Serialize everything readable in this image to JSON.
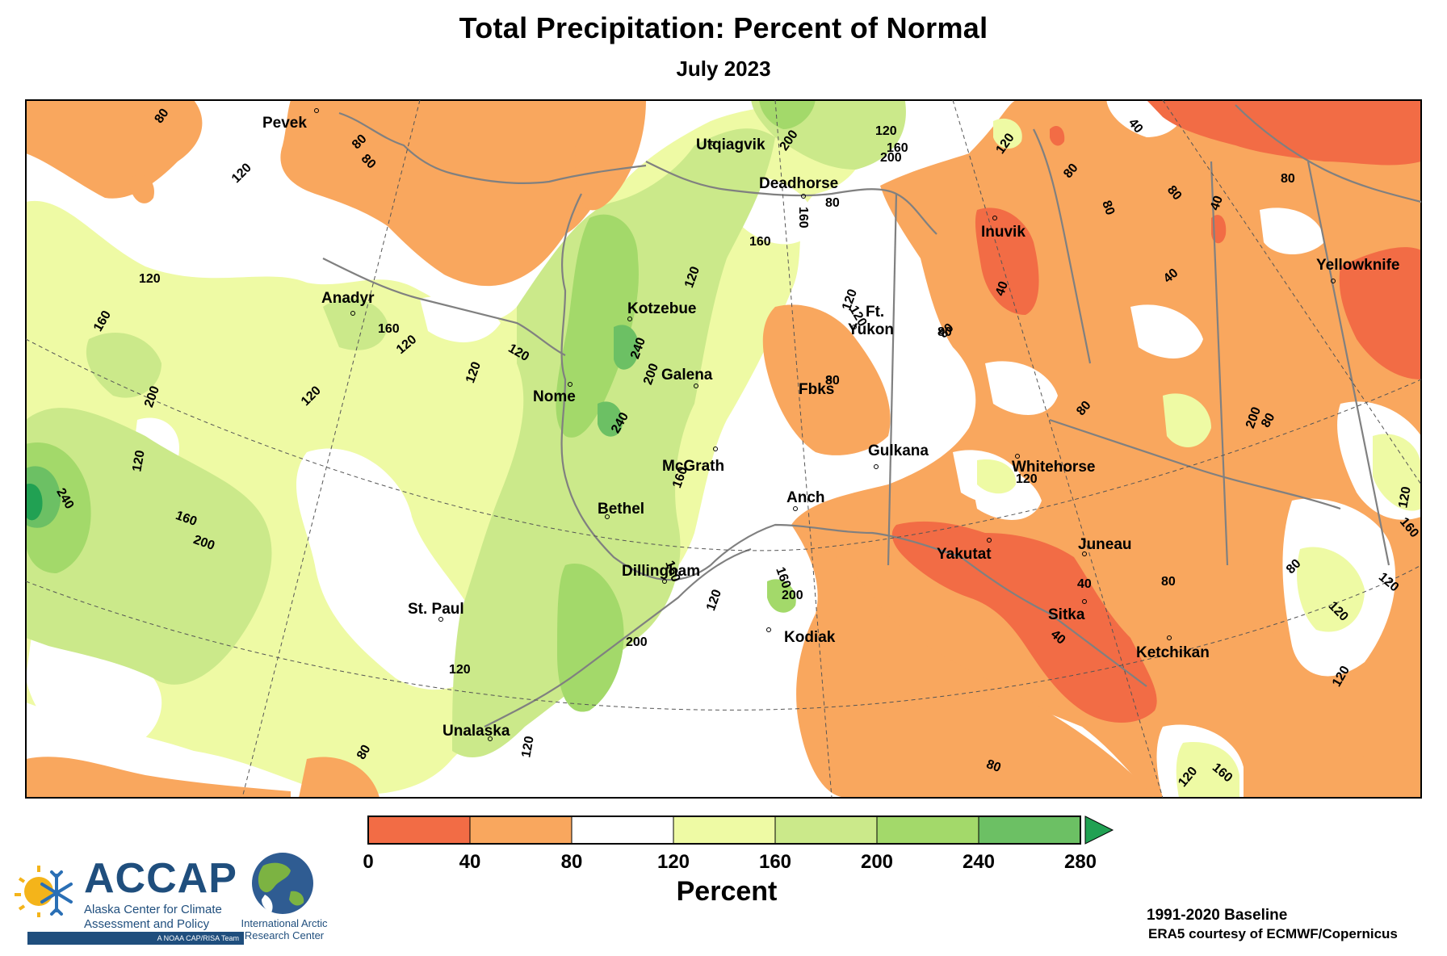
{
  "title": "Total Precipitation: Percent of Normal",
  "subtitle": "July 2023",
  "chart_data": {
    "type": "heatmap",
    "title": "Total Precipitation: Percent of Normal",
    "subtitle": "July 2023",
    "colorbar": {
      "label": "Percent",
      "ticks": [
        "0",
        "40",
        "80",
        "120",
        "160",
        "200",
        "240",
        "280"
      ],
      "bins": [
        {
          "range": [
            0,
            40
          ],
          "color": "#f26c45"
        },
        {
          "range": [
            40,
            80
          ],
          "color": "#f9a75e"
        },
        {
          "range": [
            80,
            120
          ],
          "color": "#ffffff"
        },
        {
          "range": [
            120,
            160
          ],
          "color": "#eefaa4"
        },
        {
          "range": [
            160,
            200
          ],
          "color": "#cbe98a"
        },
        {
          "range": [
            200,
            240
          ],
          "color": "#a3d96a"
        },
        {
          "range": [
            240,
            280
          ],
          "color": "#6cc064"
        },
        {
          "range": [
            280,
            null
          ],
          "color": "#21a153"
        }
      ]
    },
    "places": [
      "Pevek",
      "Utqiagvik",
      "Deadhorse",
      "Inuvik",
      "Yellowknife",
      "Anadyr",
      "Kotzebue",
      "Ft.",
      "Yukon",
      "Galena",
      "Nome",
      "Fbks",
      "Gulkana",
      "Whitehorse",
      "McGrath",
      "Anch",
      "Bethel",
      "Yakutat",
      "Juneau",
      "Dillingham",
      "St. Paul",
      "Sitka",
      "Kodiak",
      "Ketchikan",
      "Unalaska"
    ],
    "contour_labels": [
      "80",
      "80",
      "80",
      "120",
      "200",
      "160",
      "120",
      "200",
      "80",
      "160",
      "160",
      "120",
      "80",
      "40",
      "80",
      "40",
      "40",
      "80",
      "80",
      "120",
      "160",
      "160",
      "120",
      "120",
      "120",
      "120",
      "200",
      "240",
      "200",
      "80",
      "80",
      "40",
      "120",
      "120",
      "80",
      "120",
      "120",
      "80",
      "240",
      "120",
      "240",
      "160",
      "80",
      "200",
      "160",
      "200",
      "120",
      "120",
      "40",
      "160",
      "160",
      "200",
      "200",
      "120",
      "80",
      "80",
      "120",
      "40",
      "120",
      "120",
      "120",
      "120",
      "160",
      "160",
      "80",
      "80"
    ]
  },
  "footer": {
    "baseline": "1991-2020 Baseline",
    "credit": "ERA5 courtesy of ECMWF/Copernicus"
  },
  "logos": {
    "accap_name": "ACCAP",
    "accap_line1": "Alaska Center for Climate",
    "accap_line2": "Assessment and Policy",
    "accap_tag": "A NOAA CAP/RISA Team",
    "iarc_line1": "International Arctic",
    "iarc_line2": "Research Center"
  }
}
